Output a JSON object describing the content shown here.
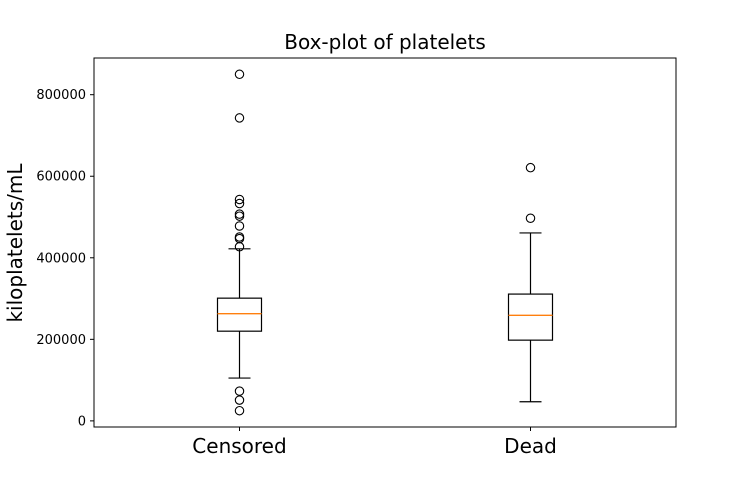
{
  "chart_data": {
    "type": "box",
    "title": "Box-plot of platelets",
    "xlabel": "",
    "ylabel": "kiloplatelets/mL",
    "ylim": [
      -15000,
      890000
    ],
    "yticks": [
      0,
      200000,
      400000,
      600000,
      800000
    ],
    "ytick_labels": [
      "0",
      "200000",
      "400000",
      "600000",
      "800000"
    ],
    "categories": [
      "Censored",
      "Dead"
    ],
    "boxes": [
      {
        "category": "Censored",
        "whisker_low": 105000,
        "q1": 220000,
        "median": 263000,
        "q3": 301000,
        "whisker_high": 422000,
        "outliers": [
          25000,
          51000,
          73000,
          427000,
          447000,
          451000,
          478000,
          502000,
          507000,
          533000,
          543000,
          743000,
          850000
        ]
      },
      {
        "category": "Dead",
        "whisker_low": 47000,
        "q1": 198000,
        "median": 259000,
        "q3": 311000,
        "whisker_high": 461000,
        "outliers": [
          497000,
          621000
        ]
      }
    ],
    "colors": {
      "median": "#ff7f0e",
      "box": "#000000"
    },
    "grid": false
  }
}
